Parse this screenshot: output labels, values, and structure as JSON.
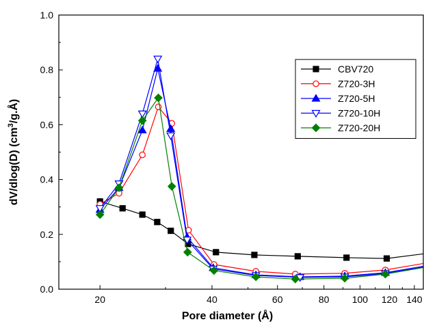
{
  "chart_data": {
    "type": "line",
    "xlabel": "Pore diameter (Å)",
    "ylabel": {
      "main": "dV/dlog(D) (cm",
      "sup": "3",
      "tail": "/g.Å)"
    },
    "x_scale": "log",
    "xlim": [
      15.5,
      148
    ],
    "ylim": [
      0,
      1.0
    ],
    "x_ticks": [
      20,
      40,
      60,
      80,
      100,
      120,
      140
    ],
    "x_tick_labels": [
      "20",
      "40",
      "60",
      "80",
      "100",
      "120",
      "140"
    ],
    "y_ticks": [
      0.0,
      0.2,
      0.4,
      0.6,
      0.8,
      1.0
    ],
    "y_tick_labels": [
      "0.0",
      "0.2",
      "0.4",
      "0.6",
      "0.8",
      "1.0"
    ],
    "legend_position": "top-right",
    "series": [
      {
        "name": "CBV720",
        "color": "#000000",
        "marker": "square-filled",
        "points": [
          [
            20,
            0.32
          ],
          [
            23,
            0.295
          ],
          [
            26,
            0.272
          ],
          [
            28.5,
            0.245
          ],
          [
            31,
            0.213
          ],
          [
            34.5,
            0.165
          ],
          [
            41,
            0.135
          ],
          [
            52,
            0.125
          ],
          [
            68,
            0.12
          ],
          [
            92,
            0.115
          ],
          [
            118,
            0.112
          ],
          [
            150,
            0.13
          ]
        ]
      },
      {
        "name": "Z720-3H",
        "color": "#ff0000",
        "marker": "circle-open",
        "points": [
          [
            20,
            0.31
          ],
          [
            22.5,
            0.35
          ],
          [
            26,
            0.49
          ],
          [
            28.7,
            0.665
          ],
          [
            31.2,
            0.605
          ],
          [
            34.6,
            0.215
          ],
          [
            40.5,
            0.09
          ],
          [
            52.5,
            0.065
          ],
          [
            67,
            0.055
          ],
          [
            91,
            0.058
          ],
          [
            117,
            0.07
          ],
          [
            150,
            0.095
          ]
        ]
      },
      {
        "name": "Z720-5H",
        "color": "#0000ff",
        "marker": "triangle-up-filled",
        "points": [
          [
            20,
            0.29
          ],
          [
            22.5,
            0.37
          ],
          [
            26,
            0.58
          ],
          [
            28.6,
            0.805
          ],
          [
            31,
            0.585
          ],
          [
            34.3,
            0.19
          ],
          [
            40.3,
            0.078
          ],
          [
            52.5,
            0.052
          ],
          [
            69,
            0.045
          ],
          [
            91,
            0.048
          ],
          [
            117,
            0.06
          ],
          [
            150,
            0.085
          ]
        ]
      },
      {
        "name": "Z720-10H",
        "color": "#0000ff",
        "marker": "triangle-down-open",
        "points": [
          [
            20,
            0.295
          ],
          [
            22.5,
            0.385
          ],
          [
            26,
            0.64
          ],
          [
            28.6,
            0.84
          ],
          [
            31,
            0.56
          ],
          [
            34.3,
            0.18
          ],
          [
            40.3,
            0.074
          ],
          [
            52.5,
            0.05
          ],
          [
            69,
            0.043
          ],
          [
            91,
            0.045
          ],
          [
            117,
            0.057
          ],
          [
            150,
            0.082
          ]
        ]
      },
      {
        "name": "Z720-20H",
        "color": "#008000",
        "marker": "diamond-filled",
        "points": [
          [
            20,
            0.272
          ],
          [
            22.5,
            0.37
          ],
          [
            26,
            0.615
          ],
          [
            28.7,
            0.698
          ],
          [
            31.2,
            0.375
          ],
          [
            34.4,
            0.135
          ],
          [
            40.5,
            0.068
          ],
          [
            52.5,
            0.045
          ],
          [
            67,
            0.037
          ],
          [
            91,
            0.04
          ],
          [
            117,
            0.055
          ],
          [
            150,
            0.08
          ]
        ]
      }
    ]
  }
}
